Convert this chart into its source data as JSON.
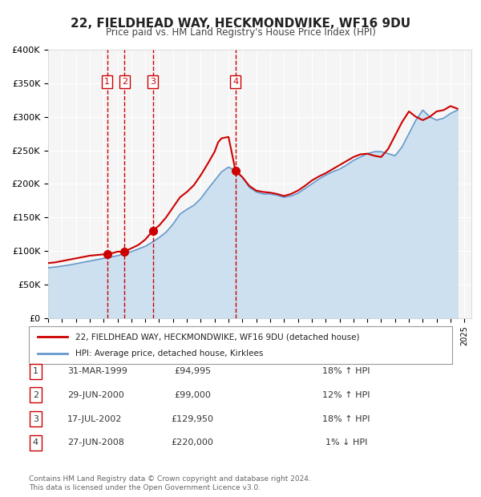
{
  "title": "22, FIELDHEAD WAY, HECKMONDWIKE, WF16 9DU",
  "subtitle": "Price paid vs. HM Land Registry's House Price Index (HPI)",
  "background_color": "#ffffff",
  "chart_bg_color": "#f5f5f5",
  "grid_color": "#ffffff",
  "ylim": [
    0,
    400000
  ],
  "yticks": [
    0,
    50000,
    100000,
    150000,
    200000,
    250000,
    300000,
    350000,
    400000
  ],
  "ytick_labels": [
    "£0",
    "£50K",
    "£100K",
    "£150K",
    "£200K",
    "£250K",
    "£300K",
    "£350K",
    "£400K"
  ],
  "xlim_start": 1995.0,
  "xlim_end": 2025.5,
  "sale_dates": [
    1999.25,
    2000.5,
    2002.54,
    2008.5
  ],
  "sale_prices": [
    94995,
    99000,
    129950,
    220000
  ],
  "sale_labels": [
    "1",
    "2",
    "3",
    "4"
  ],
  "red_line_color": "#cc0000",
  "blue_line_color": "#6699cc",
  "blue_fill_color": "#cce0f0",
  "sale_dot_color": "#cc0000",
  "vline_color": "#cc0000",
  "legend_label_red": "22, FIELDHEAD WAY, HECKMONDWIKE, WF16 9DU (detached house)",
  "legend_label_blue": "HPI: Average price, detached house, Kirklees",
  "table_entries": [
    {
      "num": "1",
      "date": "31-MAR-1999",
      "price": "£94,995",
      "pct": "18% ↑ HPI"
    },
    {
      "num": "2",
      "date": "29-JUN-2000",
      "price": "£99,000",
      "pct": "12% ↑ HPI"
    },
    {
      "num": "3",
      "date": "17-JUL-2002",
      "price": "£129,950",
      "pct": "18% ↑ HPI"
    },
    {
      "num": "4",
      "date": "27-JUN-2008",
      "price": "£220,000",
      "pct": "1% ↓ HPI"
    }
  ],
  "footer": "Contains HM Land Registry data © Crown copyright and database right 2024.\nThis data is licensed under the Open Government Licence v3.0.",
  "hpi_years": [
    1995.0,
    1995.5,
    1996.0,
    1996.5,
    1997.0,
    1997.5,
    1998.0,
    1998.5,
    1999.0,
    1999.5,
    2000.0,
    2000.5,
    2001.0,
    2001.5,
    2002.0,
    2002.5,
    2003.0,
    2003.5,
    2004.0,
    2004.5,
    2005.0,
    2005.5,
    2006.0,
    2006.5,
    2007.0,
    2007.5,
    2008.0,
    2008.5,
    2009.0,
    2009.5,
    2010.0,
    2010.5,
    2011.0,
    2011.5,
    2012.0,
    2012.5,
    2013.0,
    2013.5,
    2014.0,
    2014.5,
    2015.0,
    2015.5,
    2016.0,
    2016.5,
    2017.0,
    2017.5,
    2018.0,
    2018.5,
    2019.0,
    2019.5,
    2020.0,
    2020.5,
    2021.0,
    2021.5,
    2022.0,
    2022.5,
    2023.0,
    2023.5,
    2024.0,
    2024.5
  ],
  "hpi_values": [
    75000,
    76000,
    77500,
    79000,
    81000,
    83000,
    85000,
    87000,
    89000,
    91000,
    93000,
    96000,
    99000,
    103000,
    107000,
    113000,
    120000,
    128000,
    140000,
    155000,
    162000,
    168000,
    178000,
    192000,
    205000,
    218000,
    225000,
    220000,
    210000,
    195000,
    188000,
    185000,
    185000,
    183000,
    180000,
    182000,
    186000,
    193000,
    200000,
    207000,
    213000,
    218000,
    222000,
    228000,
    235000,
    240000,
    245000,
    248000,
    248000,
    245000,
    242000,
    255000,
    275000,
    295000,
    310000,
    300000,
    295000,
    298000,
    305000,
    310000
  ],
  "red_years": [
    1995.0,
    1995.5,
    1996.0,
    1996.5,
    1997.0,
    1997.5,
    1998.0,
    1998.5,
    1999.0,
    1999.25,
    1999.5,
    2000.0,
    2000.5,
    2001.0,
    2001.5,
    2002.0,
    2002.54,
    2003.0,
    2003.5,
    2004.0,
    2004.5,
    2005.0,
    2005.5,
    2006.0,
    2006.5,
    2007.0,
    2007.25,
    2007.5,
    2008.0,
    2008.5,
    2009.0,
    2009.5,
    2010.0,
    2010.5,
    2011.0,
    2011.5,
    2012.0,
    2012.5,
    2013.0,
    2013.5,
    2014.0,
    2014.5,
    2015.0,
    2015.5,
    2016.0,
    2016.5,
    2017.0,
    2017.5,
    2018.0,
    2018.5,
    2019.0,
    2019.5,
    2020.0,
    2020.5,
    2021.0,
    2021.5,
    2022.0,
    2022.5,
    2023.0,
    2023.5,
    2024.0,
    2024.5
  ],
  "red_values": [
    82000,
    83000,
    85000,
    87000,
    89000,
    91000,
    93000,
    94000,
    94995,
    94995,
    96000,
    99000,
    99000,
    104000,
    109000,
    117000,
    129950,
    138000,
    150000,
    165000,
    180000,
    188000,
    198000,
    213000,
    230000,
    248000,
    262000,
    268000,
    270000,
    220000,
    210000,
    197000,
    190000,
    188000,
    187000,
    185000,
    182000,
    185000,
    190000,
    197000,
    205000,
    211000,
    216000,
    222000,
    228000,
    234000,
    240000,
    244000,
    245000,
    242000,
    240000,
    252000,
    272000,
    292000,
    308000,
    300000,
    295000,
    300000,
    308000,
    310000,
    316000,
    312000
  ]
}
